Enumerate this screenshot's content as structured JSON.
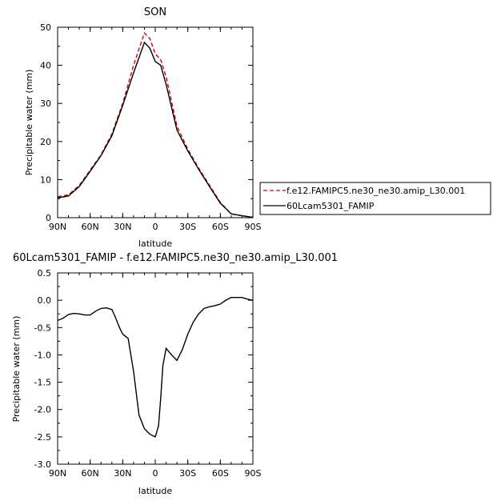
{
  "chart_data": [
    {
      "type": "line",
      "title": "SON",
      "xlabel": "latitude",
      "ylabel": "Precipitable water (mm)",
      "xlim": [
        90,
        -90
      ],
      "ylim": [
        0,
        50
      ],
      "x_ticks": [
        {
          "v": 90,
          "label": "90N"
        },
        {
          "v": 60,
          "label": "60N"
        },
        {
          "v": 30,
          "label": "30N"
        },
        {
          "v": 0,
          "label": "0"
        },
        {
          "v": -30,
          "label": "30S"
        },
        {
          "v": -60,
          "label": "60S"
        },
        {
          "v": -90,
          "label": "90S"
        }
      ],
      "y_ticks": [
        {
          "v": 0,
          "label": "0"
        },
        {
          "v": 10,
          "label": "10"
        },
        {
          "v": 20,
          "label": "20"
        },
        {
          "v": 30,
          "label": "30"
        },
        {
          "v": 40,
          "label": "40"
        },
        {
          "v": 50,
          "label": "50"
        }
      ],
      "legend_position": "right",
      "series": [
        {
          "name": "f.e12.FAMIPC5.ne30_ne30.amip_L30.001",
          "color": "#cc0000",
          "dash": true,
          "x": [
            90,
            80,
            70,
            60,
            50,
            40,
            30,
            20,
            10,
            5,
            0,
            -5,
            -10,
            -20,
            -30,
            -40,
            -50,
            -60,
            -70,
            -80,
            -90
          ],
          "y": [
            5.5,
            6.0,
            8.5,
            12.5,
            16.5,
            22.0,
            30.0,
            40.0,
            48.5,
            47.0,
            43.0,
            41.5,
            37.0,
            24.0,
            18.0,
            13.0,
            8.5,
            4.0,
            1.0,
            0.5,
            0.1
          ]
        },
        {
          "name": "60Lcam5301_FAMIP",
          "color": "#000000",
          "dash": false,
          "x": [
            90,
            80,
            70,
            60,
            50,
            40,
            30,
            20,
            10,
            5,
            0,
            -5,
            -10,
            -20,
            -30,
            -40,
            -50,
            -60,
            -70,
            -80,
            -90
          ],
          "y": [
            5.2,
            5.7,
            8.2,
            12.2,
            16.3,
            21.5,
            29.5,
            38.0,
            46.0,
            44.5,
            41.0,
            40.0,
            35.0,
            23.0,
            17.5,
            12.7,
            8.2,
            3.8,
            1.0,
            0.5,
            0.1
          ]
        }
      ]
    },
    {
      "type": "line",
      "title": "60Lcam5301_FAMIP - f.e12.FAMIPC5.ne30_ne30.amip_L30.001",
      "xlabel": "latitude",
      "ylabel": "Precipitable water (mm)",
      "xlim": [
        90,
        -90
      ],
      "ylim": [
        -3.0,
        0.5
      ],
      "x_ticks": [
        {
          "v": 90,
          "label": "90N"
        },
        {
          "v": 60,
          "label": "60N"
        },
        {
          "v": 30,
          "label": "30N"
        },
        {
          "v": 0,
          "label": "0"
        },
        {
          "v": -30,
          "label": "30S"
        },
        {
          "v": -60,
          "label": "60S"
        },
        {
          "v": -90,
          "label": "90S"
        }
      ],
      "y_ticks": [
        {
          "v": 0.5,
          "label": "0.5"
        },
        {
          "v": 0.0,
          "label": "0.0"
        },
        {
          "v": -0.5,
          "label": "-0.5"
        },
        {
          "v": -1.0,
          "label": "-1.0"
        },
        {
          "v": -1.5,
          "label": "-1.5"
        },
        {
          "v": -2.0,
          "label": "-2.0"
        },
        {
          "v": -2.5,
          "label": "-2.5"
        },
        {
          "v": -3.0,
          "label": "-3.0"
        }
      ],
      "series": [
        {
          "name": "",
          "color": "#000000",
          "dash": false,
          "x": [
            90,
            85,
            80,
            75,
            70,
            65,
            60,
            55,
            50,
            45,
            40,
            37,
            33,
            30,
            25,
            20,
            15,
            10,
            5,
            0,
            -3,
            -5,
            -7,
            -10,
            -15,
            -20,
            -25,
            -30,
            -35,
            -40,
            -45,
            -50,
            -55,
            -60,
            -65,
            -70,
            -75,
            -80,
            -85,
            -90
          ],
          "y": [
            -0.37,
            -0.33,
            -0.26,
            -0.24,
            -0.25,
            -0.27,
            -0.27,
            -0.2,
            -0.15,
            -0.14,
            -0.17,
            -0.3,
            -0.5,
            -0.62,
            -0.7,
            -1.3,
            -2.1,
            -2.35,
            -2.45,
            -2.5,
            -2.3,
            -1.8,
            -1.2,
            -0.88,
            -1.0,
            -1.1,
            -0.9,
            -0.62,
            -0.4,
            -0.25,
            -0.15,
            -0.12,
            -0.1,
            -0.07,
            0.0,
            0.05,
            0.05,
            0.05,
            0.02,
            0.0
          ]
        }
      ]
    }
  ]
}
